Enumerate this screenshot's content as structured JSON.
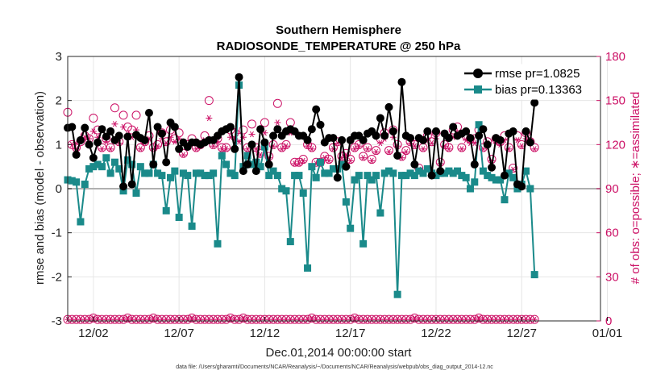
{
  "chart_data": {
    "type": "line",
    "title": "Southern Hemisphere",
    "subtitle": "RADIOSONDE_TEMPERATURE @ 250 hPa",
    "xlabel": "Dec.01,2014 00:00:00 start",
    "ylabel": "rmse and bias (model - observation)",
    "y2label": "# of obs: o=possible; ∗=assimilated",
    "footnote": "data file: /Users/gharamti/Documents/NCAR/Reanalysis/~/Documents/NCAR/Reanalysis/webpub/obs_diag_output_2014-12.nc",
    "xlim": [
      0.5,
      31.6
    ],
    "ylim": [
      -3,
      3
    ],
    "y2lim": [
      0,
      180
    ],
    "yticks": [
      -3,
      -2,
      -1,
      0,
      1,
      2,
      3
    ],
    "y2ticks": [
      0,
      30,
      60,
      90,
      120,
      150,
      180
    ],
    "xticks": [
      2,
      7,
      12,
      17,
      22,
      27,
      32
    ],
    "xtick_labels": [
      "12/02",
      "12/07",
      "12/12",
      "12/17",
      "12/22",
      "12/27",
      "01/01"
    ],
    "legend_position": "top-right",
    "grid": true,
    "colors": {
      "rmse": "#000000",
      "bias": "#1a8a8a",
      "obs": "#cc1166",
      "zero": "#b0b0b0"
    },
    "series": [
      {
        "name": "rmse pr=1.0825",
        "key": "rmse",
        "x_start": 0.5,
        "x_step": 0.25,
        "values": [
          1.38,
          1.4,
          0.77,
          1.1,
          1.38,
          1.0,
          0.7,
          1.05,
          1.35,
          1.18,
          1.3,
          1.1,
          1.2,
          0.05,
          1.18,
          0.1,
          1.22,
          1.15,
          1.1,
          1.72,
          0.55,
          1.4,
          1.25,
          0.6,
          1.5,
          1.4,
          0.9,
          1.05,
          0.95,
          1.05,
          1.05,
          1.0,
          1.05,
          1.1,
          1.1,
          1.2,
          1.3,
          1.35,
          1.4,
          0.9,
          2.53,
          0.4,
          0.55,
          1.0,
          0.4,
          1.35,
          1.05,
          0.55,
          1.2,
          1.35,
          1.2,
          1.3,
          1.35,
          1.3,
          1.2,
          1.2,
          1.1,
          1.35,
          1.8,
          1.45,
          1.05,
          1.15,
          1.15,
          0.25,
          1.1,
          0.5,
          1.1,
          1.2,
          1.2,
          1.1,
          1.25,
          1.3,
          1.2,
          1.6,
          1.2,
          1.85,
          1.3,
          0.75,
          2.42,
          1.2,
          1.15,
          0.55,
          1.15,
          1.1,
          1.3,
          0.3,
          1.3,
          0.4,
          1.25,
          1.15,
          1.4,
          1.2,
          1.25,
          1.3,
          1.15,
          0.55,
          1.2,
          1.35,
          1.0,
          0.48,
          1.15,
          1.1,
          0.3,
          1.25,
          1.3,
          0.1,
          0.05,
          1.3,
          1.05,
          1.95
        ],
        "marker": "circle"
      },
      {
        "name": "bias pr=0.13363",
        "key": "bias",
        "x_start": 0.5,
        "x_step": 0.25,
        "values": [
          0.2,
          0.18,
          0.15,
          -0.75,
          0.1,
          0.45,
          0.5,
          0.55,
          0.5,
          0.7,
          0.35,
          0.6,
          0.45,
          -0.05,
          0.65,
          0.55,
          -0.1,
          0.5,
          0.35,
          0.35,
          0.55,
          0.35,
          0.3,
          -0.5,
          0.25,
          0.4,
          -0.65,
          0.35,
          0.3,
          -0.85,
          0.35,
          0.35,
          0.3,
          0.3,
          0.35,
          -1.25,
          0.75,
          0.55,
          0.35,
          0.3,
          2.35,
          0.5,
          0.75,
          0.55,
          0.6,
          0.5,
          0.95,
          0.3,
          0.4,
          0.3,
          0.0,
          -0.05,
          -1.2,
          0.3,
          0.3,
          -0.1,
          -1.8,
          0.5,
          0.25,
          0.6,
          0.35,
          0.35,
          0.45,
          0.45,
          0.55,
          -0.3,
          -0.9,
          0.2,
          0.3,
          -1.25,
          0.3,
          0.2,
          0.3,
          -0.55,
          0.35,
          0.4,
          0.35,
          -2.4,
          0.3,
          0.3,
          0.35,
          0.3,
          0.4,
          0.35,
          0.45,
          0.35,
          0.3,
          0.35,
          0.35,
          0.4,
          0.35,
          0.4,
          0.3,
          0.25,
          0.0,
          0.15,
          1.45,
          0.4,
          0.3,
          0.25,
          0.2,
          0.2,
          -0.25,
          0.35,
          0.25,
          0.0,
          0.1,
          0.4,
          0.0,
          -1.95
        ],
        "marker": "square"
      },
      {
        "name": "possible",
        "key": "possible",
        "x_start": 0.5,
        "x_step": 0.25,
        "values": [
          142,
          120,
          118,
          122,
          126,
          124,
          138,
          130,
          118,
          124,
          118,
          145,
          122,
          140,
          132,
          130,
          140,
          118,
          122,
          126,
          118,
          120,
          128,
          122,
          130,
          124,
          128,
          114,
          120,
          124,
          118,
          120,
          126,
          150,
          120,
          124,
          118,
          118,
          130,
          128,
          125,
          130,
          118,
          134,
          118,
          114,
          135,
          112,
          120,
          148,
          118,
          120,
          135,
          108,
          108,
          110,
          120,
          118,
          108,
          108,
          112,
          110,
          118,
          122,
          112,
          114,
          110,
          118,
          120,
          112,
          118,
          110,
          116,
          124,
          128,
          116,
          130,
          120,
          112,
          116,
          122,
          120,
          104,
          118,
          126,
          122,
          128,
          108,
          120,
          118,
          130,
          132,
          118,
          126,
          124,
          124,
          130,
          118,
          122,
          110,
          124,
          122,
          126,
          118,
          104,
          126,
          120,
          128,
          122,
          118
        ],
        "marker": "circle-open"
      },
      {
        "name": "assimilated",
        "key": "assimilated",
        "x_start": 0.5,
        "x_step": 0.25,
        "values": [
          131,
          120,
          117,
          122,
          125,
          124,
          129,
          125,
          117,
          122,
          117,
          134,
          121,
          132,
          127,
          125,
          130,
          117,
          121,
          124,
          117,
          119,
          124,
          121,
          125,
          122,
          124,
          113,
          119,
          122,
          117,
          119,
          123,
          138,
          119,
          122,
          117,
          117,
          125,
          124,
          122,
          125,
          117,
          127,
          117,
          113,
          128,
          111,
          119,
          135,
          117,
          119,
          128,
          107,
          107,
          109,
          119,
          117,
          107,
          107,
          111,
          109,
          117,
          121,
          111,
          113,
          109,
          117,
          119,
          111,
          117,
          109,
          115,
          121,
          124,
          115,
          125,
          119,
          111,
          115,
          121,
          119,
          103,
          117,
          123,
          121,
          124,
          107,
          119,
          117,
          125,
          126,
          117,
          123,
          121,
          121,
          125,
          117,
          121,
          109,
          121,
          120,
          123,
          117,
          103,
          123,
          119,
          124,
          121,
          117
        ],
        "marker": "asterisk"
      },
      {
        "name": "possible-low",
        "key": "possible_low",
        "x_start": 0.5,
        "x_step": 0.25,
        "values": [
          1,
          1,
          1,
          1,
          1,
          1,
          2,
          1,
          1,
          1,
          1,
          1,
          1,
          1,
          2,
          1,
          1,
          1,
          1,
          1,
          2,
          1,
          1,
          1,
          1,
          1,
          1,
          1,
          1,
          2,
          1,
          1,
          1,
          1,
          1,
          1,
          1,
          1,
          2,
          1,
          1,
          2,
          1,
          1,
          1,
          1,
          1,
          1,
          1,
          1,
          1,
          1,
          1,
          1,
          1,
          1,
          1,
          2,
          1,
          1,
          1,
          1,
          1,
          1,
          1,
          1,
          1,
          2,
          1,
          1,
          1,
          1,
          1,
          1,
          1,
          1,
          1,
          1,
          1,
          1,
          1,
          2,
          1,
          1,
          1,
          1,
          1,
          1,
          1,
          1,
          1,
          1,
          1,
          1,
          1,
          1,
          2,
          1,
          1,
          1,
          1,
          1,
          1,
          1,
          1,
          1,
          1,
          1,
          1,
          1
        ],
        "marker": "circle-open"
      }
    ]
  }
}
